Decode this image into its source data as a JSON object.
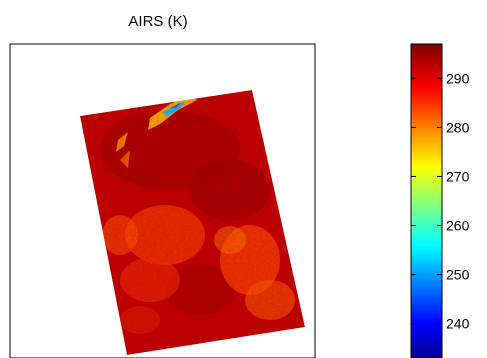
{
  "chart_data": {
    "type": "heatmap",
    "title": "AIRS (K)",
    "xlabel": "",
    "ylabel": "",
    "colorbar": {
      "range": [
        233,
        297
      ],
      "ticks": [
        240,
        250,
        260,
        270,
        280,
        290
      ],
      "tick_labels": [
        "240",
        "250",
        "260",
        "270",
        "280",
        "290"
      ],
      "colormap": "jet"
    },
    "grid": false,
    "description_values": {
      "dominant_value": 293,
      "cool_streak_min": 262
    }
  }
}
